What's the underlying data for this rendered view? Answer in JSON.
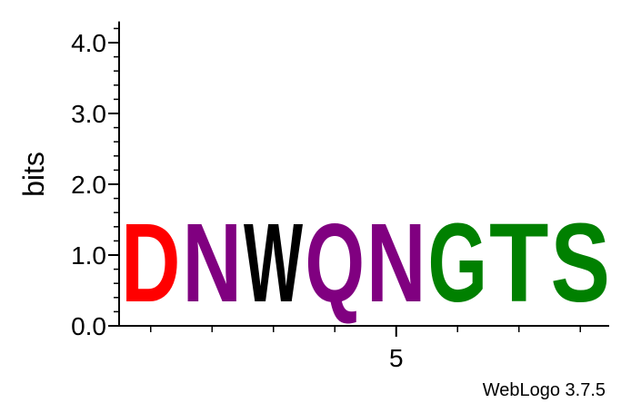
{
  "chart_data": {
    "type": "sequence-logo",
    "ylabel": "bits",
    "ylim": [
      0,
      4.3
    ],
    "y_ticks": [
      {
        "value": 0.0,
        "label": "0.0"
      },
      {
        "value": 1.0,
        "label": "1.0"
      },
      {
        "value": 2.0,
        "label": "2.0"
      },
      {
        "value": 3.0,
        "label": "3.0"
      },
      {
        "value": 4.0,
        "label": "4.0"
      }
    ],
    "y_minor_step": 0.2,
    "x_tick_labels": [
      {
        "position": 5,
        "label": "5"
      }
    ],
    "positions": [
      {
        "position": 1,
        "letter": "D",
        "bits": 1.77,
        "color": "#ff0000"
      },
      {
        "position": 2,
        "letter": "N",
        "bits": 1.77,
        "color": "#800080"
      },
      {
        "position": 3,
        "letter": "W",
        "bits": 1.77,
        "color": "#000000"
      },
      {
        "position": 4,
        "letter": "Q",
        "bits": 1.77,
        "color": "#800080"
      },
      {
        "position": 5,
        "letter": "N",
        "bits": 1.77,
        "color": "#800080"
      },
      {
        "position": 6,
        "letter": "G",
        "bits": 1.77,
        "color": "#008000"
      },
      {
        "position": 7,
        "letter": "T",
        "bits": 1.77,
        "color": "#008000"
      },
      {
        "position": 8,
        "letter": "S",
        "bits": 1.77,
        "color": "#008000"
      }
    ]
  },
  "credit": "WebLogo 3.7.5"
}
